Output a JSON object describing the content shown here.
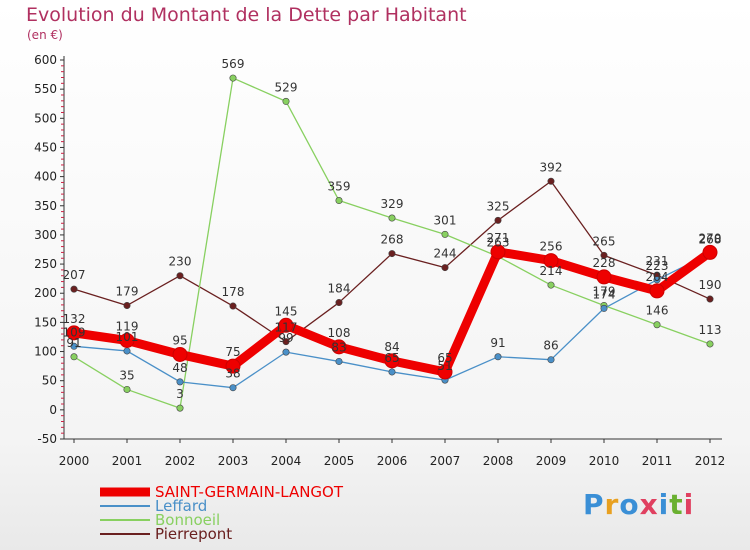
{
  "title": "Evolution du Montant de la Dette par Habitant",
  "subtitle": "(en €)",
  "logo": {
    "text": "Proxiti",
    "colors": [
      "#3a8fd6",
      "#e8a020",
      "#3a8fd6",
      "#e04060",
      "#3a8fd6",
      "#6ab030",
      "#e04060"
    ]
  },
  "chart_data": {
    "type": "line",
    "x": [
      "2000",
      "2001",
      "2002",
      "2003",
      "2004",
      "2005",
      "2006",
      "2007",
      "2008",
      "2009",
      "2010",
      "2011",
      "2012"
    ],
    "ylim": [
      -50,
      600
    ],
    "yticks": [
      "-50",
      "0",
      "50",
      "100",
      "150",
      "200",
      "250",
      "300",
      "350",
      "400",
      "450",
      "500",
      "550",
      "600"
    ],
    "grid": false,
    "legend_position": "bottom-left",
    "series": [
      {
        "name": "SAINT-GERMAIN-LANGOT",
        "color": "#ee0000",
        "values": [
          132,
          119,
          95,
          75,
          145,
          108,
          84,
          65,
          271,
          256,
          228,
          204,
          270
        ],
        "labels": [
          "132",
          "119",
          "95",
          "75",
          "145",
          "108",
          "84",
          "65",
          "271",
          "256",
          "228",
          "204",
          "270"
        ]
      },
      {
        "name": "Leffard",
        "color": "#4a90c8",
        "values": [
          109,
          101,
          48,
          38,
          99,
          83,
          65,
          51,
          91,
          86,
          174,
          223,
          268
        ],
        "labels": [
          "109",
          "101",
          "48",
          "38",
          "99",
          "83",
          "65",
          "51",
          "91",
          "86",
          "174",
          "223",
          "268"
        ]
      },
      {
        "name": "Bonnoeil",
        "color": "#88d060",
        "values": [
          91,
          35,
          3,
          569,
          529,
          359,
          329,
          301,
          263,
          214,
          179,
          146,
          113
        ],
        "labels": [
          "91",
          "35",
          "3",
          "569",
          "529",
          "359",
          "329",
          "301",
          "263",
          "214",
          "179",
          "146",
          "113"
        ]
      },
      {
        "name": "Pierrepont",
        "color": "#6a2020",
        "values": [
          207,
          179,
          230,
          178,
          117,
          184,
          268,
          244,
          325,
          392,
          265,
          231,
          190
        ],
        "labels": [
          "207",
          "179",
          "230",
          "178",
          "117",
          "184",
          "268",
          "244",
          "325",
          "392",
          "265",
          "231",
          "190"
        ]
      }
    ]
  }
}
